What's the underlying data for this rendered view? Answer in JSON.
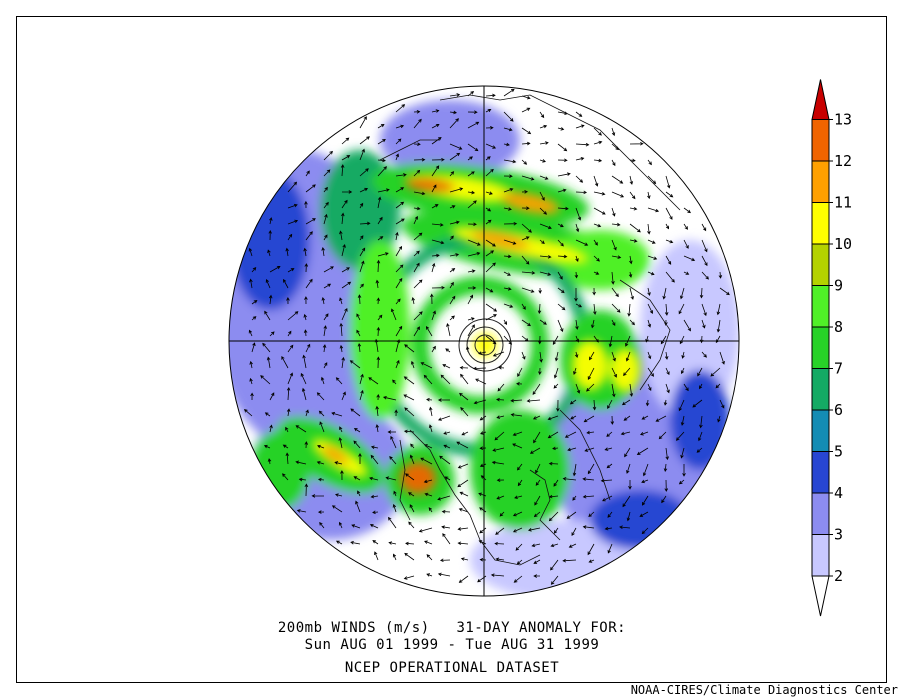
{
  "caption": {
    "line1": "200mb WINDS (m/s)   31-DAY ANOMALY FOR:",
    "line2": "Sun AUG 01 1999 - Tue AUG 31 1999",
    "line3": "NCEP OPERATIONAL DATASET"
  },
  "credit": "NOAA-CIRES/Climate Diagnostics Center",
  "colorbar": {
    "labels": [
      "2",
      "3",
      "4",
      "5",
      "6",
      "7",
      "8",
      "9",
      "10",
      "11",
      "12",
      "13"
    ],
    "colors": [
      "#ffffff",
      "#c8c8ff",
      "#8c8cf0",
      "#2846d2",
      "#148cb4",
      "#14aa64",
      "#28d228",
      "#50f028",
      "#b4d200",
      "#ffff00",
      "#ffa000",
      "#f06400",
      "#c80000"
    ]
  },
  "map": {
    "projection": "north polar stereographic",
    "variable": "200mb wind speed anomaly",
    "units": "m/s"
  }
}
